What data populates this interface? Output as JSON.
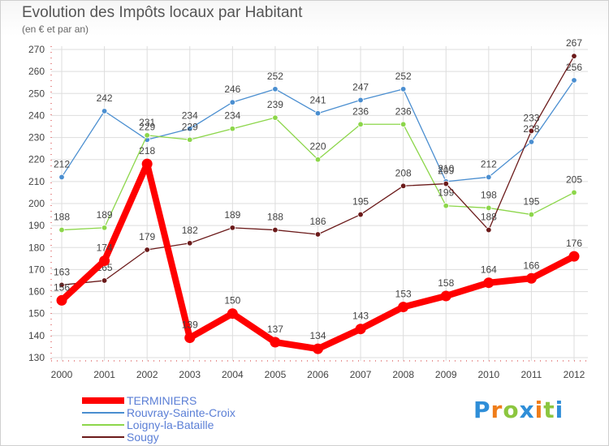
{
  "chart_data": {
    "type": "line",
    "title": "Evolution des Impôts locaux par Habitant",
    "subtitle": "(en € et par an)",
    "x": [
      "2000",
      "2001",
      "2002",
      "2003",
      "2004",
      "2005",
      "2006",
      "2007",
      "2008",
      "2009",
      "2010",
      "2011",
      "2012"
    ],
    "ylim": [
      130,
      270
    ],
    "yticks": [
      130,
      140,
      150,
      160,
      170,
      180,
      190,
      200,
      210,
      220,
      230,
      240,
      250,
      260,
      270
    ],
    "grid": true,
    "legend_position": "bottom-left",
    "series": [
      {
        "name": "TERMINIERS",
        "color": "#ff0000",
        "values": [
          156,
          174,
          218,
          139,
          150,
          137,
          134,
          143,
          153,
          158,
          164,
          166,
          176
        ]
      },
      {
        "name": "Rouvray-Sainte-Croix",
        "color": "#4a8ed0",
        "values": [
          212,
          242,
          229,
          234,
          246,
          252,
          241,
          247,
          252,
          210,
          212,
          228,
          256
        ]
      },
      {
        "name": "Loigny-la-Bataille",
        "color": "#8cd64a",
        "values": [
          188,
          189,
          231,
          229,
          234,
          239,
          220,
          236,
          236,
          199,
          198,
          195,
          205
        ]
      },
      {
        "name": "Sougy",
        "color": "#6b1a1a",
        "values": [
          163,
          165,
          179,
          182,
          189,
          188,
          186,
          195,
          208,
          209,
          188,
          233,
          267
        ]
      }
    ]
  },
  "logo": {
    "letters": [
      "P",
      "r",
      "o",
      "x",
      "i",
      "t",
      "i"
    ],
    "colors": [
      "#2f8ed8",
      "#ef7d1a",
      "#8cc63f",
      "#2f8ed8",
      "#ef7d1a",
      "#8cc63f",
      "#2f8ed8"
    ]
  }
}
